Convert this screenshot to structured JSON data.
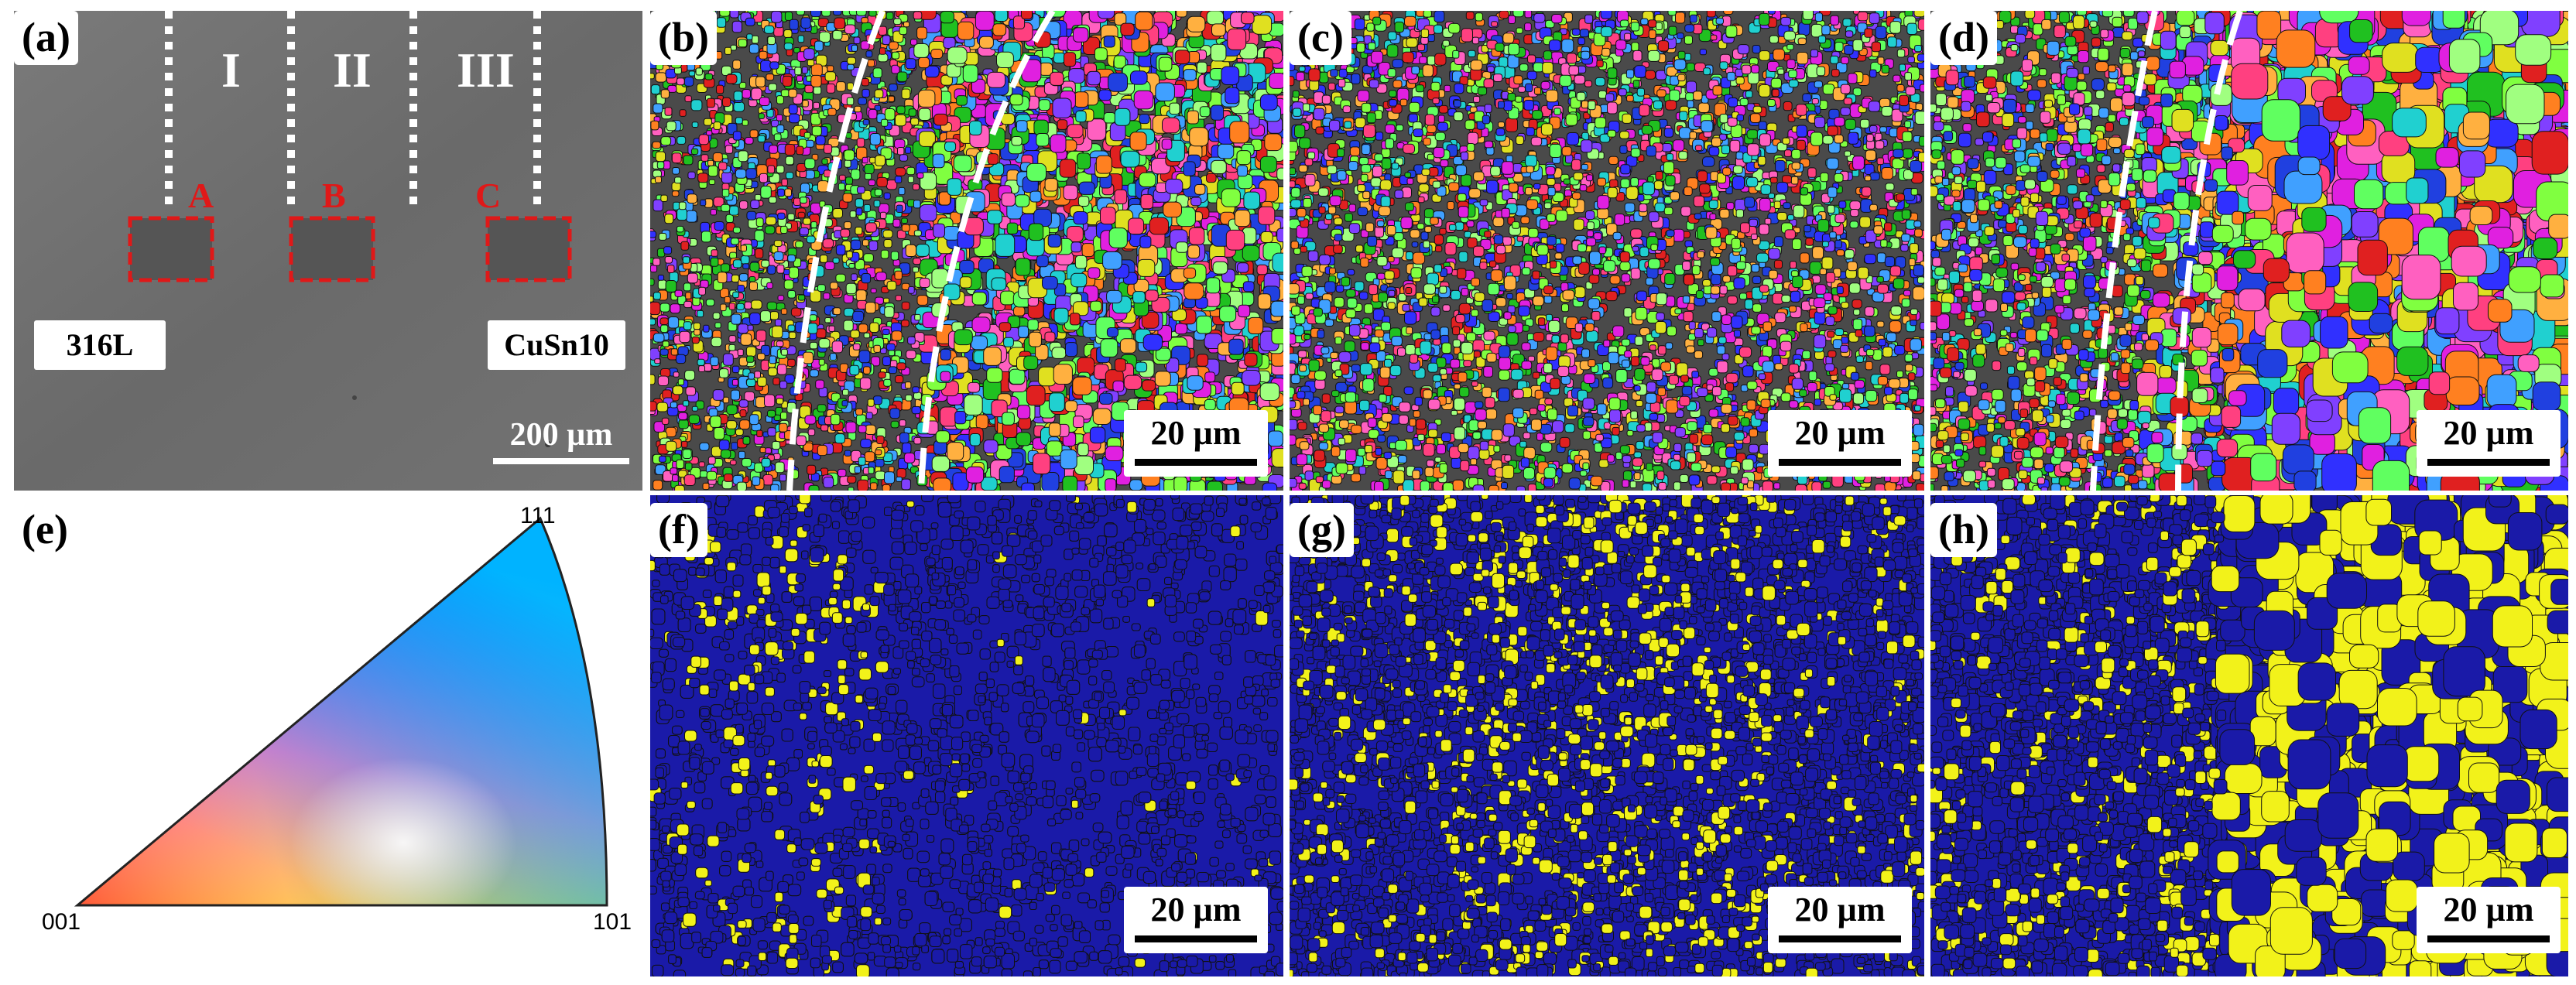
{
  "panel_labels": {
    "a": "(a)",
    "b": "(b)",
    "c": "(c)",
    "d": "(d)",
    "e": "(e)",
    "f": "(f)",
    "g": "(g)",
    "h": "(h)"
  },
  "zones": [
    "I",
    "II",
    "III"
  ],
  "regions": [
    "A",
    "B",
    "C"
  ],
  "materials": {
    "left": "316L",
    "right": "CuSn10"
  },
  "scale_bars": {
    "a": "200 µm",
    "ebsd": "20 µm"
  },
  "ipf_poles": {
    "p001": "001",
    "p101": "101",
    "p111": "111"
  },
  "colors": {
    "phase_fcc_fe": "#1a1aa8",
    "phase_fcc_cu": "#f2f21a",
    "interface_dash": "#ffffff",
    "region_box": "#e01818"
  }
}
